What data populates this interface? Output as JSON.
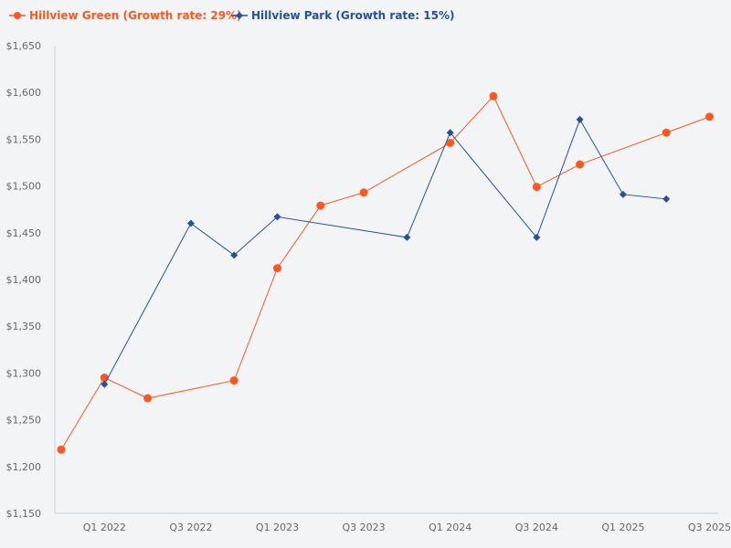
{
  "chart_data": {
    "type": "line",
    "title": "",
    "xlabel": "",
    "ylabel": "",
    "ylim": [
      1150,
      1650
    ],
    "y_ticks": [
      "$1,150",
      "$1,200",
      "$1,250",
      "$1,300",
      "$1,350",
      "$1,400",
      "$1,450",
      "$1,500",
      "$1,550",
      "$1,600",
      "$1,650"
    ],
    "y_tick_values": [
      1150,
      1200,
      1250,
      1300,
      1350,
      1400,
      1450,
      1500,
      1550,
      1600,
      1650
    ],
    "x": [
      "Q4 2021",
      "Q1 2022",
      "Q2 2022",
      "Q3 2022",
      "Q4 2022",
      "Q1 2023",
      "Q2 2023",
      "Q3 2023",
      "Q4 2023",
      "Q1 2024",
      "Q2 2024",
      "Q3 2024",
      "Q4 2024",
      "Q1 2025",
      "Q2 2025",
      "Q3 2025"
    ],
    "x_tick_labels": [
      "Q1 2022",
      "Q3 2022",
      "Q1 2023",
      "Q3 2023",
      "Q1 2024",
      "Q3 2024",
      "Q1 2025",
      "Q3 2025"
    ],
    "grid": false,
    "legend_placement": "top-left",
    "series": [
      {
        "name": "Hillview Green (Growth rate: 29%)",
        "color": "#ff5722",
        "marker": "circle",
        "values": [
          1218,
          1295,
          1273,
          null,
          1292,
          1412,
          1479,
          1493,
          null,
          1546,
          1596,
          1499,
          1523,
          null,
          1557,
          1574
        ]
      },
      {
        "name": "Hillview Park (Growth rate: 15%)",
        "color": "#2450a0",
        "marker": "diamond",
        "values": [
          null,
          1288,
          null,
          1460,
          1426,
          1467,
          null,
          null,
          1445,
          1557,
          null,
          1445,
          1571,
          1491,
          1486,
          null
        ]
      }
    ]
  }
}
